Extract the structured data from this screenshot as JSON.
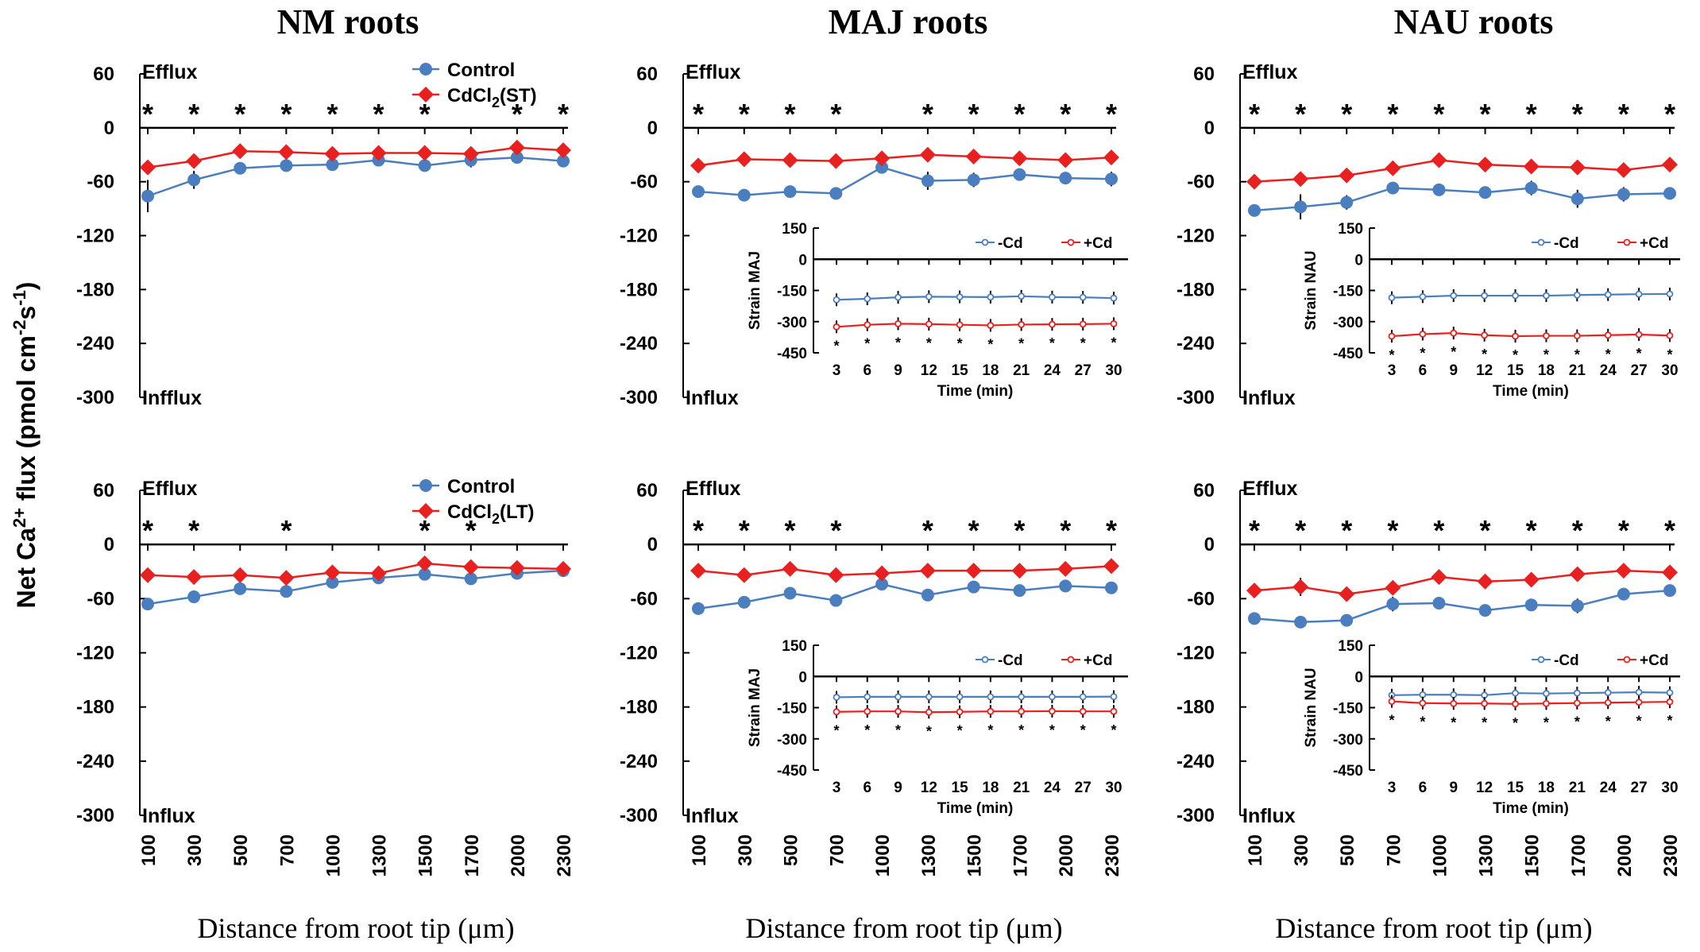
{
  "figure": {
    "ylabel": "Net Ca²⁺ flux (pmol cm⁻²s⁻¹)",
    "ylabel_main": "Net Ca",
    "ylabel_sup1": "2+",
    "ylabel_mid": " flux (pmol cm",
    "ylabel_sup2": "-2",
    "ylabel_mid2": "s",
    "ylabel_sup3": "-1",
    "ylabel_end": ")",
    "column_titles": [
      "NM roots",
      "MAJ roots",
      "NAU roots"
    ],
    "xlabel": "Distance from root tip (μm)",
    "colors": {
      "control": "#4a7ebf",
      "cd": "#e8201f",
      "axis": "#000000"
    }
  },
  "chart_data": [
    {
      "id": "nm_st",
      "type": "line",
      "title": "NM roots",
      "xlabel": "Distance from root tip (μm)",
      "categories": [
        "100",
        "300",
        "500",
        "700",
        "1000",
        "1300",
        "1500",
        "1700",
        "2000",
        "2300"
      ],
      "ylim": [
        -300,
        60
      ],
      "yticks": [
        "60",
        "0",
        "-60",
        "-120",
        "-180",
        "-240",
        "-300"
      ],
      "efflux_label": "Efflux",
      "influx_label": "Infflux",
      "legend": [
        "Control",
        "CdCl2(ST)"
      ],
      "legend_sub": [
        "",
        "2"
      ],
      "legend_base": [
        "Control",
        "CdCl"
      ],
      "legend_tail": [
        "",
        "(ST)"
      ],
      "series": [
        {
          "name": "Control",
          "values": [
            -76,
            -58,
            -45,
            -42,
            -41,
            -36,
            -42,
            -36,
            -33,
            -37
          ],
          "err": [
            18,
            10,
            4,
            4,
            4,
            4,
            5,
            8,
            4,
            5
          ]
        },
        {
          "name": "CdCl2(ST)",
          "values": [
            -44,
            -37,
            -26,
            -27,
            -29,
            -28,
            -28,
            -29,
            -22,
            -25
          ],
          "err": [
            5,
            4,
            4,
            4,
            4,
            4,
            4,
            4,
            4,
            5
          ]
        }
      ],
      "sig": [
        "*",
        "*",
        "*",
        "*",
        "*",
        "*",
        "*",
        "",
        "*",
        "*"
      ]
    },
    {
      "id": "maj_st",
      "type": "line",
      "title": "MAJ roots",
      "xlabel": "Distance from root tip (μm)",
      "categories": [
        "100",
        "300",
        "500",
        "700",
        "1000",
        "1300",
        "1500",
        "1700",
        "2000",
        "2300"
      ],
      "ylim": [
        -300,
        60
      ],
      "yticks": [
        "60",
        "0",
        "-60",
        "-120",
        "-180",
        "-240",
        "-300"
      ],
      "efflux_label": "Efflux",
      "influx_label": "Influx",
      "series": [
        {
          "name": "Control",
          "values": [
            -71,
            -75,
            -71,
            -73,
            -44,
            -59,
            -58,
            -52,
            -56,
            -57
          ],
          "err": [
            4,
            5,
            5,
            4,
            5,
            10,
            8,
            5,
            4,
            8
          ]
        },
        {
          "name": "CdCl2",
          "values": [
            -42,
            -35,
            -36,
            -37,
            -34,
            -30,
            -32,
            -34,
            -36,
            -33
          ],
          "err": [
            4,
            4,
            4,
            4,
            4,
            4,
            4,
            4,
            4,
            4
          ]
        }
      ],
      "sig": [
        "*",
        "*",
        "*",
        "*",
        "",
        "*",
        "*",
        "*",
        "*",
        "*"
      ],
      "inset": {
        "ylabel": "Strain MAJ",
        "xlabel": "Time (min)",
        "categories": [
          "3",
          "6",
          "9",
          "12",
          "15",
          "18",
          "21",
          "24",
          "27",
          "30"
        ],
        "ylim": [
          -450,
          150
        ],
        "yticks": [
          "150",
          "0",
          "-150",
          "-300",
          "-450"
        ],
        "legend": [
          "-Cd",
          "+Cd"
        ],
        "series": [
          {
            "name": "-Cd",
            "values": [
              -195,
              -190,
              -183,
              -180,
              -181,
              -182,
              -178,
              -182,
              -183,
              -187
            ]
          },
          {
            "name": "+Cd",
            "values": [
              -325,
              -315,
              -310,
              -312,
              -315,
              -318,
              -314,
              -313,
              -312,
              -310
            ]
          }
        ],
        "sig": [
          "*",
          "*",
          "*",
          "*",
          "*",
          "*",
          "*",
          "*",
          "*",
          "*"
        ]
      }
    },
    {
      "id": "nau_st",
      "type": "line",
      "title": "NAU roots",
      "xlabel": "Distance from root tip (μm)",
      "categories": [
        "100",
        "300",
        "500",
        "700",
        "1000",
        "1300",
        "1500",
        "1700",
        "2000",
        "2300"
      ],
      "ylim": [
        -300,
        60
      ],
      "yticks": [
        "60",
        "0",
        "-60",
        "-120",
        "-180",
        "-240",
        "-300"
      ],
      "efflux_label": "Efflux",
      "influx_label": "Influx",
      "series": [
        {
          "name": "Control",
          "values": [
            -92,
            -88,
            -83,
            -67,
            -69,
            -72,
            -67,
            -79,
            -74,
            -73
          ],
          "err": [
            4,
            14,
            8,
            4,
            4,
            4,
            8,
            10,
            8,
            6
          ]
        },
        {
          "name": "CdCl2",
          "values": [
            -60,
            -57,
            -53,
            -45,
            -36,
            -41,
            -43,
            -44,
            -47,
            -41
          ],
          "err": [
            4,
            5,
            5,
            4,
            4,
            4,
            5,
            5,
            8,
            4
          ]
        }
      ],
      "sig": [
        "*",
        "*",
        "*",
        "*",
        "*",
        "*",
        "*",
        "*",
        "*",
        "*"
      ],
      "inset": {
        "ylabel": "Strain NAU",
        "xlabel": "Time (min)",
        "categories": [
          "3",
          "6",
          "9",
          "12",
          "15",
          "18",
          "21",
          "24",
          "27",
          "30"
        ],
        "ylim": [
          -450,
          150
        ],
        "yticks": [
          "150",
          "0",
          "-150",
          "-300",
          "-450"
        ],
        "legend": [
          "-Cd",
          "+Cd"
        ],
        "series": [
          {
            "name": "-Cd",
            "values": [
              -185,
              -180,
              -175,
              -175,
              -175,
              -175,
              -172,
              -170,
              -168,
              -167
            ]
          },
          {
            "name": "+Cd",
            "values": [
              -370,
              -360,
              -355,
              -365,
              -370,
              -368,
              -368,
              -365,
              -362,
              -367
            ]
          }
        ],
        "sig": [
          "*",
          "*",
          "*",
          "*",
          "*",
          "*",
          "*",
          "*",
          "*",
          "*"
        ]
      }
    },
    {
      "id": "nm_lt",
      "type": "line",
      "title": "",
      "xlabel": "Distance from root tip (μm)",
      "categories": [
        "100",
        "300",
        "500",
        "700",
        "1000",
        "1300",
        "1500",
        "1700",
        "2000",
        "2300"
      ],
      "ylim": [
        -300,
        60
      ],
      "yticks": [
        "60",
        "0",
        "-60",
        "-120",
        "-180",
        "-240",
        "-300"
      ],
      "efflux_label": "Efflux",
      "influx_label": "Influx",
      "legend": [
        "Control",
        "CdCl2(LT)"
      ],
      "legend_sub": [
        "",
        "2"
      ],
      "legend_base": [
        "Control",
        "CdCl"
      ],
      "legend_tail": [
        "",
        "(LT)"
      ],
      "series": [
        {
          "name": "Control",
          "values": [
            -66,
            -58,
            -49,
            -52,
            -42,
            -37,
            -33,
            -38,
            -32,
            -29
          ],
          "err": [
            6,
            6,
            6,
            5,
            4,
            4,
            4,
            5,
            4,
            4
          ]
        },
        {
          "name": "CdCl2(LT)",
          "values": [
            -34,
            -36,
            -34,
            -37,
            -31,
            -32,
            -21,
            -25,
            -26,
            -27
          ],
          "err": [
            4,
            4,
            6,
            5,
            6,
            6,
            4,
            5,
            4,
            4
          ]
        }
      ],
      "sig": [
        "*",
        "*",
        "",
        "*",
        "",
        "",
        "*",
        "*",
        "",
        ""
      ]
    },
    {
      "id": "maj_lt",
      "type": "line",
      "title": "",
      "xlabel": "Distance from root tip (μm)",
      "categories": [
        "100",
        "300",
        "500",
        "700",
        "1000",
        "1300",
        "1500",
        "1700",
        "2000",
        "2300"
      ],
      "ylim": [
        -300,
        60
      ],
      "yticks": [
        "60",
        "0",
        "-60",
        "-120",
        "-180",
        "-240",
        "-300"
      ],
      "efflux_label": "Efflux",
      "influx_label": "Influx",
      "series": [
        {
          "name": "Control",
          "values": [
            -71,
            -64,
            -54,
            -62,
            -44,
            -56,
            -47,
            -51,
            -46,
            -48
          ],
          "err": [
            6,
            5,
            4,
            4,
            4,
            5,
            4,
            4,
            4,
            4
          ]
        },
        {
          "name": "CdCl2",
          "values": [
            -29,
            -34,
            -27,
            -34,
            -32,
            -29,
            -29,
            -29,
            -27,
            -24
          ],
          "err": [
            4,
            4,
            4,
            4,
            4,
            4,
            4,
            4,
            4,
            4
          ]
        }
      ],
      "sig": [
        "*",
        "*",
        "*",
        "*",
        "",
        "*",
        "*",
        "*",
        "*",
        "*"
      ],
      "inset": {
        "ylabel": "Strain MAJ",
        "xlabel": "Time (min)",
        "categories": [
          "3",
          "6",
          "9",
          "12",
          "15",
          "18",
          "21",
          "24",
          "27",
          "30"
        ],
        "ylim": [
          -450,
          150
        ],
        "yticks": [
          "150",
          "0",
          "-150",
          "-300",
          "-450"
        ],
        "legend": [
          "-Cd",
          "+Cd"
        ],
        "series": [
          {
            "name": "-Cd",
            "values": [
              -100,
              -98,
              -98,
              -98,
              -98,
              -98,
              -98,
              -98,
              -98,
              -97
            ]
          },
          {
            "name": "+Cd",
            "values": [
              -170,
              -168,
              -168,
              -172,
              -170,
              -168,
              -168,
              -167,
              -168,
              -168
            ]
          }
        ],
        "sig": [
          "*",
          "*",
          "*",
          "*",
          "*",
          "*",
          "*",
          "*",
          "*",
          "*"
        ]
      }
    },
    {
      "id": "nau_lt",
      "type": "line",
      "title": "",
      "xlabel": "Distance from root tip (μm)",
      "categories": [
        "100",
        "300",
        "500",
        "700",
        "1000",
        "1300",
        "1500",
        "1700",
        "2000",
        "2300"
      ],
      "ylim": [
        -300,
        60
      ],
      "yticks": [
        "60",
        "0",
        "-60",
        "-120",
        "-180",
        "-240",
        "-300"
      ],
      "efflux_label": "Efflux",
      "influx_label": "Influx",
      "series": [
        {
          "name": "Control",
          "values": [
            -82,
            -86,
            -84,
            -66,
            -65,
            -73,
            -67,
            -68,
            -55,
            -51
          ],
          "err": [
            4,
            4,
            6,
            8,
            6,
            4,
            6,
            8,
            4,
            6
          ]
        },
        {
          "name": "CdCl2",
          "values": [
            -51,
            -47,
            -55,
            -48,
            -36,
            -41,
            -39,
            -33,
            -29,
            -31
          ],
          "err": [
            8,
            10,
            5,
            6,
            6,
            6,
            5,
            6,
            5,
            5
          ]
        }
      ],
      "sig": [
        "*",
        "*",
        "*",
        "*",
        "*",
        "*",
        "*",
        "*",
        "*",
        "*"
      ],
      "inset": {
        "ylabel": "Strain NAU",
        "xlabel": "Time (min)",
        "categories": [
          "3",
          "6",
          "9",
          "12",
          "15",
          "18",
          "21",
          "24",
          "27",
          "30"
        ],
        "ylim": [
          -450,
          150
        ],
        "yticks": [
          "150",
          "0",
          "-150",
          "-300",
          "-450"
        ],
        "legend": [
          "-Cd",
          "+Cd"
        ],
        "series": [
          {
            "name": "-Cd",
            "values": [
              -90,
              -88,
              -88,
              -90,
              -80,
              -82,
              -80,
              -78,
              -76,
              -78
            ]
          },
          {
            "name": "+Cd",
            "values": [
              -120,
              -128,
              -130,
              -130,
              -132,
              -130,
              -128,
              -126,
              -124,
              -122
            ]
          }
        ],
        "sig": [
          "*",
          "*",
          "*",
          "*",
          "*",
          "*",
          "*",
          "*",
          "*",
          "*"
        ]
      }
    }
  ]
}
